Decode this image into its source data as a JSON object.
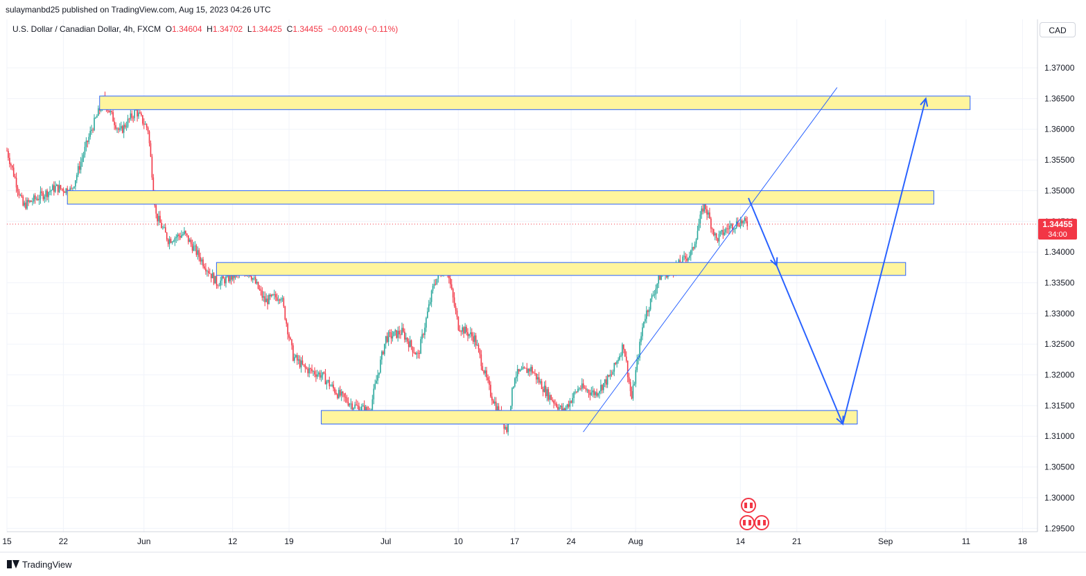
{
  "header": {
    "published_text": "sulaymanbd25 published on TradingView.com, Aug 15, 2023 04:26 UTC"
  },
  "legend": {
    "symbol": "U.S. Dollar / Canadian Dollar, 4h, FXCM",
    "o_label": "O",
    "o_value": "1.34604",
    "h_label": "H",
    "h_value": "1.34702",
    "l_label": "L",
    "l_value": "1.34425",
    "c_label": "C",
    "c_value": "1.34455",
    "change": "−0.00149 (−0.11%)"
  },
  "currency_button": "CAD",
  "last_price": {
    "value": "1.34455",
    "countdown": "34:00"
  },
  "footer": {
    "brand": "TradingView"
  },
  "colors": {
    "up": "#26a69a",
    "down": "#f23645",
    "zone_fill": "#fff59d",
    "zone_stroke": "#2962ff",
    "arrow": "#2962ff",
    "grid": "#f0f3fa"
  },
  "chart_data": {
    "type": "candlestick",
    "ylim": [
      1.2925,
      1.375
    ],
    "y_ticks": [
      1.37,
      1.365,
      1.36,
      1.355,
      1.35,
      1.345,
      1.34,
      1.335,
      1.33,
      1.325,
      1.32,
      1.315,
      1.31,
      1.305,
      1.3,
      1.295
    ],
    "y_tick_labels": [
      "1.37000",
      "1.36500",
      "1.36000",
      "1.35500",
      "1.35000",
      "1.34500",
      "1.34000",
      "1.33500",
      "1.33000",
      "1.32500",
      "1.32000",
      "1.31500",
      "1.31000",
      "1.30500",
      "1.30000",
      "1.29500"
    ],
    "x_ticks": [
      {
        "label": "15",
        "day": 0
      },
      {
        "label": "22",
        "day": 7
      },
      {
        "label": "Jun",
        "day": 17
      },
      {
        "label": "12",
        "day": 28
      },
      {
        "label": "19",
        "day": 35
      },
      {
        "label": "Jul",
        "day": 47
      },
      {
        "label": "10",
        "day": 56
      },
      {
        "label": "17",
        "day": 63
      },
      {
        "label": "24",
        "day": 70
      },
      {
        "label": "Aug",
        "day": 78
      },
      {
        "label": "14",
        "day": 91
      },
      {
        "label": "21",
        "day": 98
      },
      {
        "label": "Sep",
        "day": 109
      },
      {
        "label": "11",
        "day": 119
      },
      {
        "label": "18",
        "day": 126
      }
    ],
    "path": [
      [
        0,
        1.3565
      ],
      [
        2,
        1.3475
      ],
      [
        4,
        1.349
      ],
      [
        6,
        1.3505
      ],
      [
        8,
        1.35
      ],
      [
        10.5,
        1.36
      ],
      [
        12,
        1.3648
      ],
      [
        14,
        1.3595
      ],
      [
        16,
        1.363
      ],
      [
        17.5,
        1.36
      ],
      [
        18.5,
        1.346
      ],
      [
        20,
        1.342
      ],
      [
        22,
        1.343
      ],
      [
        24,
        1.339
      ],
      [
        26,
        1.335
      ],
      [
        28,
        1.336
      ],
      [
        30,
        1.337
      ],
      [
        32,
        1.332
      ],
      [
        34,
        1.333
      ],
      [
        35.5,
        1.323
      ],
      [
        37,
        1.321
      ],
      [
        39,
        1.32
      ],
      [
        41,
        1.317
      ],
      [
        43,
        1.315
      ],
      [
        45,
        1.314
      ],
      [
        47,
        1.326
      ],
      [
        49,
        1.327
      ],
      [
        51,
        1.323
      ],
      [
        53,
        1.335
      ],
      [
        54.5,
        1.338
      ],
      [
        56,
        1.328
      ],
      [
        58,
        1.326
      ],
      [
        60,
        1.317
      ],
      [
        62,
        1.311
      ],
      [
        63,
        1.32
      ],
      [
        65,
        1.321
      ],
      [
        67,
        1.317
      ],
      [
        69,
        1.314
      ],
      [
        71,
        1.318
      ],
      [
        73,
        1.317
      ],
      [
        75,
        1.32
      ],
      [
        76.5,
        1.325
      ],
      [
        77.5,
        1.316
      ],
      [
        79,
        1.329
      ],
      [
        81,
        1.336
      ],
      [
        83,
        1.3375
      ],
      [
        85,
        1.34
      ],
      [
        86.5,
        1.348
      ],
      [
        88,
        1.342
      ],
      [
        89.5,
        1.344
      ],
      [
        91,
        1.345
      ],
      [
        92,
        1.3445
      ]
    ],
    "zones": [
      {
        "d0": 11.5,
        "d1": 119.5,
        "p0": 1.3632,
        "p1": 1.3654
      },
      {
        "d0": 7.5,
        "d1": 115,
        "p0": 1.3478,
        "p1": 1.35
      },
      {
        "d0": 26,
        "d1": 111.5,
        "p0": 1.3362,
        "p1": 1.3383
      },
      {
        "d0": 39,
        "d1": 105.5,
        "p0": 1.312,
        "p1": 1.3142
      }
    ],
    "trendline": {
      "d0": 71.5,
      "p0": 1.3107,
      "d1": 103,
      "p1": 1.3668
    },
    "projection": [
      [
        92,
        1.3488
      ],
      [
        95.5,
        1.3378
      ],
      [
        103.7,
        1.312
      ],
      [
        114,
        1.365
      ]
    ],
    "last_price": 1.34455
  }
}
